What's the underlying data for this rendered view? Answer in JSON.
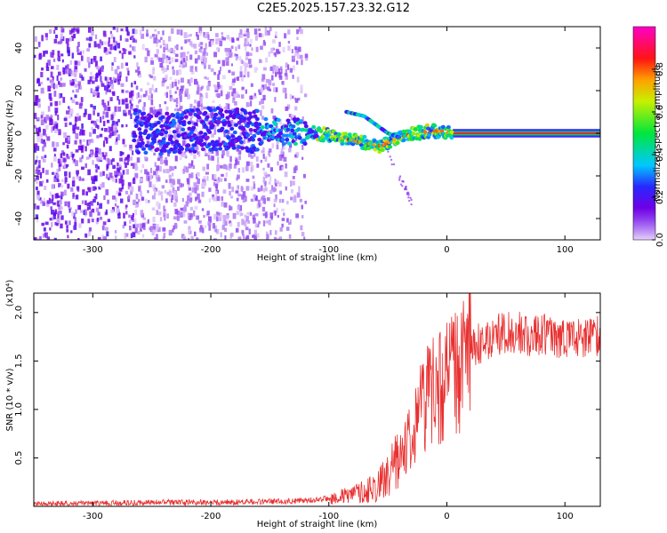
{
  "title": "C2E5.2025.157.23.32.G12",
  "colors": {
    "background": "#ffffff",
    "axis": "#000000",
    "snr_line": "#e83030",
    "band": "#d43030"
  },
  "chart_data": [
    {
      "type": "heatmap",
      "xlabel": "Height of straight line (km)",
      "ylabel": "Frequency (Hz)",
      "xlim": [
        -350,
        130
      ],
      "ylim": [
        -50,
        50
      ],
      "xticks": [
        -300,
        -200,
        -100,
        0,
        100
      ],
      "xtick_labels": [
        "-300",
        "-200",
        "-100",
        "0",
        "100"
      ],
      "yticks": [
        -40,
        -20,
        0,
        20,
        40
      ],
      "ytick_labels": [
        "-40",
        "-20",
        "0",
        "20",
        "40"
      ],
      "colorbar": {
        "label": "Normalized spectral amplitude",
        "range": [
          0,
          1
        ],
        "ticks": [
          0.0,
          0.2,
          0.4,
          0.6,
          0.8
        ],
        "tick_labels": [
          "0.0",
          "0.2",
          "0.4",
          "0.6",
          "0.8"
        ],
        "colormap": "rainbow (violet-blue-cyan-green-yellow-red-magenta)"
      },
      "features": {
        "noise_region": [
          -350,
          -160
        ],
        "main_track": {
          "x": [
            -265,
            -240,
            -200,
            -160,
            -130,
            -110,
            -90,
            -75,
            -65,
            -55,
            -45,
            -35,
            -25,
            -15,
            -5,
            5,
            130
          ],
          "y": [
            1,
            0,
            2,
            1,
            1,
            0,
            -2,
            -4,
            -5,
            -6,
            -3,
            -1,
            0,
            1,
            1,
            0,
            0
          ]
        },
        "secondary_track": {
          "x": [
            -85,
            -70,
            -60,
            -50,
            -40
          ],
          "y": [
            10,
            8,
            4,
            0,
            -2
          ]
        },
        "constant_band": {
          "x_start": 5,
          "x_end": 130,
          "freq": 0
        }
      }
    },
    {
      "type": "line",
      "xlabel": "Height of straight line (km)",
      "ylabel": "SNR (10 * v/v)",
      "y_multiplier": "(x10⁴)",
      "xlim": [
        -350,
        130
      ],
      "ylim": [
        0,
        2.2
      ],
      "xticks": [
        -300,
        -200,
        -100,
        0,
        100
      ],
      "xtick_labels": [
        "-300",
        "-200",
        "-100",
        "0",
        "100"
      ],
      "yticks": [
        0.5,
        1.0,
        1.5,
        2.0
      ],
      "ytick_labels": [
        "0.5",
        "1.0",
        "1.5",
        "2.0"
      ],
      "series": [
        {
          "x": [
            -350,
            -300,
            -250,
            -200,
            -150,
            -120,
            -100,
            -80,
            -60,
            -50,
            -40,
            -30,
            -20,
            -10,
            0,
            10,
            20,
            30,
            40,
            50,
            60,
            70,
            80,
            90,
            100,
            110,
            120,
            130
          ],
          "values": [
            0.02,
            0.03,
            0.04,
            0.04,
            0.05,
            0.06,
            0.08,
            0.12,
            0.2,
            0.3,
            0.5,
            0.8,
            1.1,
            1.25,
            1.3,
            1.45,
            1.6,
            1.7,
            1.75,
            1.8,
            1.8,
            1.75,
            1.78,
            1.75,
            1.75,
            1.72,
            1.75,
            1.74
          ]
        }
      ]
    }
  ]
}
